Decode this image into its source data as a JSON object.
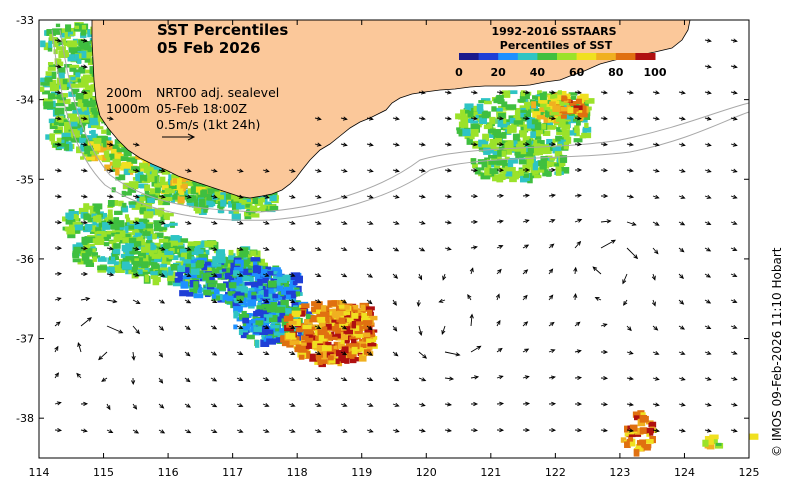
{
  "title": {
    "line1": "SST Percentiles",
    "line2": "05 Feb 2026"
  },
  "info": {
    "isobath_shallow": "200m",
    "isobath_deep": "1000m",
    "product": "NRT00 adj. sealevel",
    "valid_time": "05-Feb 18:00Z",
    "vector_scale": "0.5m/s (1kt 24h)"
  },
  "legend": {
    "line1": "1992-2016 SSTAARS",
    "line2": "Percentiles of SST",
    "ticks": [
      "0",
      "20",
      "40",
      "60",
      "80",
      "100"
    ],
    "colors": [
      "#1a1a8c",
      "#1f3fd6",
      "#1e90ff",
      "#2ec4c4",
      "#3fbf3f",
      "#9be22a",
      "#f0e020",
      "#f0b020",
      "#e07010",
      "#b01010"
    ]
  },
  "credit": "© IMOS 09-Feb-2026 11:10 Hobart",
  "axes": {
    "x_ticks": [
      "114",
      "115",
      "116",
      "117",
      "118",
      "119",
      "120",
      "121",
      "122",
      "123",
      "124",
      "125"
    ],
    "y_ticks": [
      "-33",
      "-34",
      "-35",
      "-36",
      "-37",
      "-38"
    ]
  },
  "colors": {
    "land": "#fbc89a",
    "ocean": "#ffffff",
    "isobath": "#a8a8a8"
  }
}
